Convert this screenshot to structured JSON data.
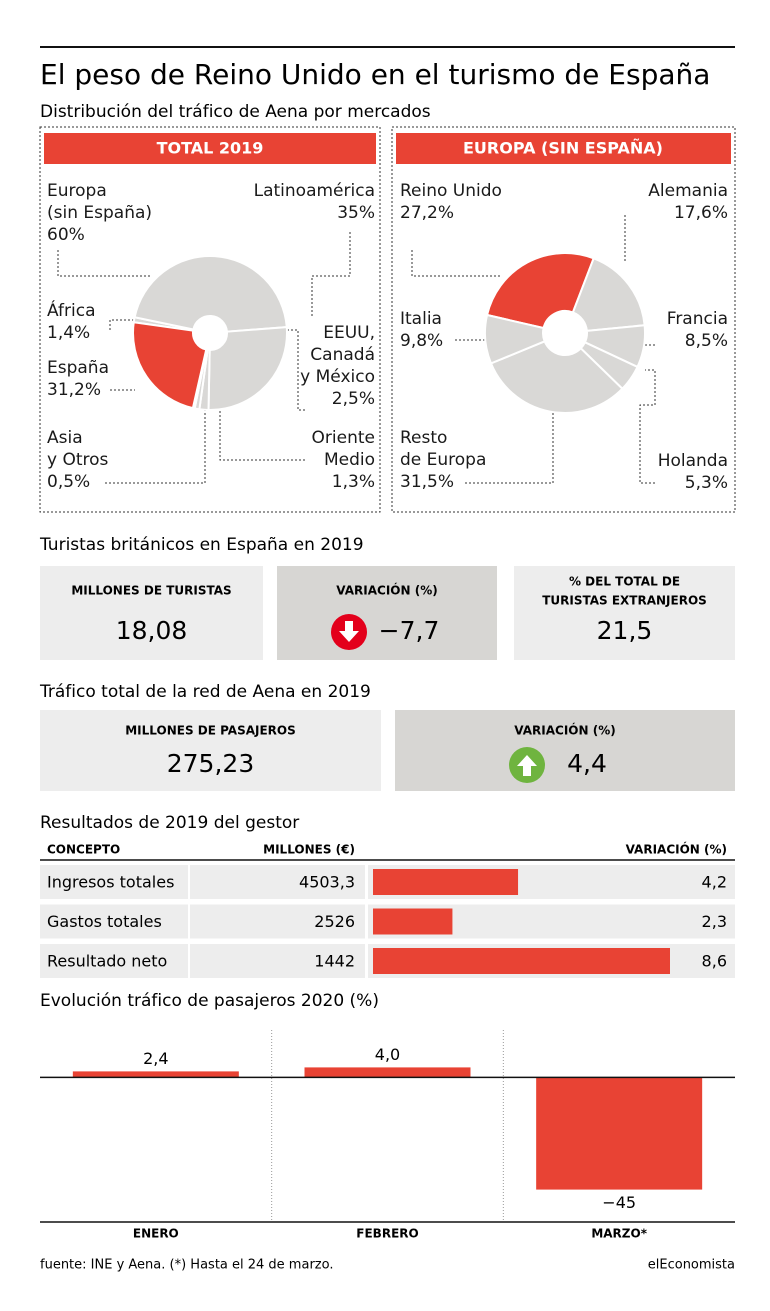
{
  "title": "El peso de Reino Unido en el turismo de España",
  "subtitle": "Distribución del tráfico de Aena por mercados",
  "chart_data": [
    {
      "type": "pie",
      "title": "TOTAL 2019",
      "categories": [
        "África",
        "Europa\n(sin España)",
        "Latinoamérica",
        "EEUU,\nCanadá\ny México",
        "Oriente\nMedio",
        "Asia\ny Otros",
        "España"
      ],
      "values": [
        1.4,
        60,
        35,
        2.5,
        1.3,
        0.5,
        31.2
      ],
      "value_labels": [
        "1,4%",
        "60%",
        "35%",
        "2,5%",
        "1,3%",
        "0,5%",
        "31,2%"
      ],
      "colors": [
        "#d9d8d6",
        "#d9d8d6",
        "#d9d8d6",
        "#d9d8d6",
        "#d9d8d6",
        "#d9d8d6",
        "#e84334"
      ]
    },
    {
      "type": "pie",
      "title": "EUROPA (SIN ESPAÑA)",
      "categories": [
        "Reino Unido",
        "Alemania",
        "Francia",
        "Holanda",
        "Resto\nde Europa",
        "Italia"
      ],
      "values": [
        27.2,
        17.6,
        8.5,
        5.3,
        31.5,
        9.8
      ],
      "value_labels": [
        "27,2%",
        "17,6%",
        "8,5%",
        "5,3%",
        "31,5%",
        "9,8%"
      ],
      "colors": [
        "#e84334",
        "#d9d8d6",
        "#d9d8d6",
        "#d9d8d6",
        "#d9d8d6",
        "#d9d8d6"
      ]
    },
    {
      "type": "bar",
      "orientation": "horizontal",
      "title": "Resultados de 2019 del gestor",
      "columns": [
        "CONCEPTO",
        "MILLONES (€)",
        "VARIACIÓN (%)"
      ],
      "categories": [
        "Ingresos totales",
        "Gastos totales",
        "Resultado neto"
      ],
      "millions": [
        "4503,3",
        "2526",
        "1442"
      ],
      "values": [
        4.2,
        2.3,
        8.6
      ],
      "value_labels": [
        "4,2",
        "2,3",
        "8,6"
      ],
      "xlim": [
        0,
        8.6
      ],
      "color": "#e84334"
    },
    {
      "type": "bar",
      "title": "Evolución tráfico de pasajeros 2020 (%)",
      "categories": [
        "ENERO",
        "FEBRERO",
        "MARZO*"
      ],
      "values": [
        2.4,
        4.0,
        -45
      ],
      "value_labels": [
        "2,4",
        "4,0",
        "−45"
      ],
      "ylim": [
        -58,
        19
      ],
      "color": "#e84334"
    }
  ],
  "kpi_sections": [
    {
      "title": "Turistas británicos en España en 2019",
      "items": [
        {
          "label": "MILLONES DE TURISTAS",
          "value": "18,08"
        },
        {
          "label": "VARIACIÓN (%)",
          "value": "−7,7"
        },
        {
          "label": "% DEL TOTAL DE\nTURISTAS EXTRANJEROS",
          "value": "21,5"
        }
      ]
    },
    {
      "title": "Tráfico total de la red de Aena en 2019",
      "items": [
        {
          "label": "MILLONES DE PASAJEROS",
          "value": "275,23"
        },
        {
          "label": "VARIACIÓN (%)",
          "value": "4,4"
        }
      ]
    }
  ],
  "source": "fuente: INE y Aena. (*) Hasta el 24 de marzo.",
  "brand": "elEconomista"
}
